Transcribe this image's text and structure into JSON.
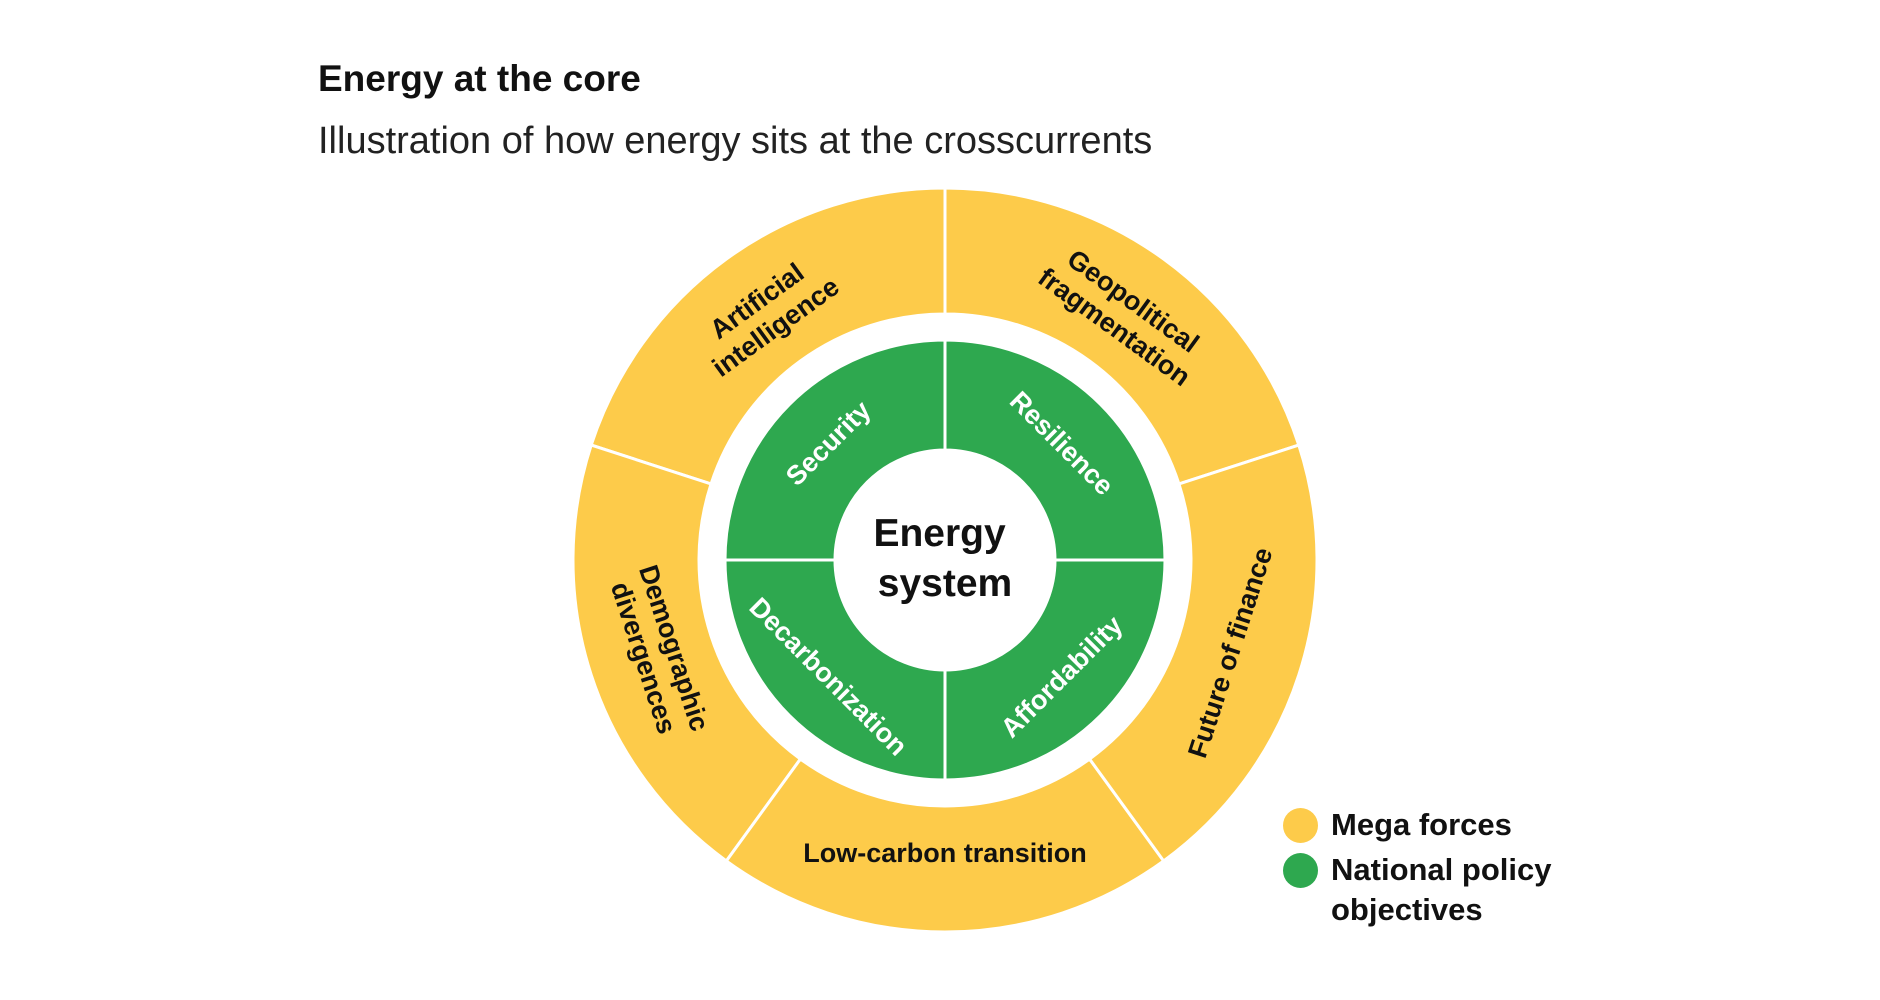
{
  "title": "Energy at the core",
  "subtitle": "Illustration of how energy sits at the crosscurrents",
  "colors": {
    "mega_forces": "#FDCB4A",
    "policy": "#2EA84F"
  },
  "center": {
    "lines": [
      "Energy",
      "system"
    ]
  },
  "mega_forces": [
    {
      "lines": [
        "Geopolitical",
        "fragmentation"
      ]
    },
    {
      "lines": [
        "Artificial",
        "intelligence"
      ]
    },
    {
      "lines": [
        "Demographic",
        "divergences"
      ]
    },
    {
      "lines": [
        "Low-carbon transition"
      ]
    },
    {
      "lines": [
        "Future of finance"
      ]
    }
  ],
  "policy_objectives": [
    {
      "label": "Resilience"
    },
    {
      "label": "Security"
    },
    {
      "label": "Decarbonization"
    },
    {
      "label": "Affordability"
    }
  ],
  "legend": [
    {
      "label": "Mega forces",
      "color": "#FDCB4A"
    },
    {
      "label": "National policy objectives",
      "color": "#2EA84F"
    }
  ]
}
